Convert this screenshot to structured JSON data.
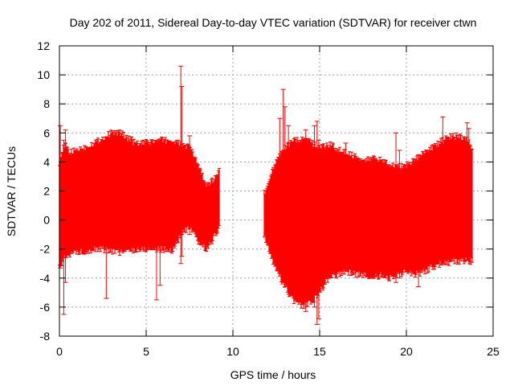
{
  "chart_data": {
    "type": "scatter",
    "title": "Day 202 of 2011, Sidereal Day-to-day VTEC variation (SDTVAR) for receiver ctwn",
    "xlabel": "GPS time / hours",
    "ylabel": "SDTVAR / TECUs",
    "xlim": [
      0,
      25
    ],
    "ylim": [
      -8,
      12
    ],
    "xticks": [
      0,
      5,
      10,
      15,
      20,
      25
    ],
    "yticks": [
      -8,
      -6,
      -4,
      -2,
      0,
      2,
      4,
      6,
      8,
      10,
      12
    ],
    "grid": true,
    "series_color": "#ff0000",
    "series": [
      {
        "name": "SDTVAR error bars",
        "segments": [
          {
            "x": [
              0.0,
              0.3,
              0.6,
              1.0,
              1.5,
              2.0,
              2.5,
              3.0,
              3.5,
              4.0,
              4.5,
              5.0,
              5.5,
              6.0,
              6.5,
              7.0,
              7.5,
              8.0,
              8.5,
              9.0,
              9.2
            ],
            "upper": [
              4.0,
              5.2,
              4.6,
              4.8,
              5.0,
              5.3,
              5.6,
              6.0,
              6.0,
              5.6,
              5.2,
              5.3,
              5.4,
              5.5,
              5.4,
              5.2,
              5.0,
              3.8,
              2.2,
              3.0,
              3.4
            ],
            "lower": [
              -3.3,
              -2.6,
              -2.3,
              -2.2,
              -2.1,
              -2.0,
              -2.0,
              -2.1,
              -2.2,
              -2.1,
              -2.0,
              -2.0,
              -2.0,
              -2.0,
              -2.1,
              -1.0,
              -0.5,
              -1.5,
              -2.0,
              -1.0,
              -0.5
            ]
          },
          {
            "x": [
              11.8,
              12.2,
              12.6,
              13.0,
              13.5,
              14.0,
              14.5,
              15.0,
              15.5,
              16.0,
              16.5,
              17.0,
              17.5,
              18.0,
              18.5,
              19.0,
              19.5,
              20.0,
              20.5,
              21.0,
              21.5,
              22.0,
              22.5,
              23.0,
              23.5,
              23.8
            ],
            "upper": [
              1.8,
              3.2,
              4.2,
              5.0,
              5.4,
              5.6,
              5.3,
              5.0,
              5.2,
              4.9,
              4.6,
              4.4,
              4.2,
              4.2,
              4.1,
              3.9,
              3.6,
              3.8,
              4.1,
              4.6,
              5.0,
              5.4,
              5.7,
              5.8,
              5.6,
              5.0
            ],
            "lower": [
              -1.0,
              -2.5,
              -3.6,
              -4.6,
              -5.5,
              -6.0,
              -5.6,
              -5.0,
              -4.0,
              -3.8,
              -3.5,
              -3.7,
              -3.8,
              -3.9,
              -3.8,
              -4.0,
              -3.7,
              -3.6,
              -3.7,
              -3.6,
              -3.2,
              -3.0,
              -2.9,
              -2.8,
              -2.8,
              -2.8
            ]
          }
        ],
        "spikes": [
          {
            "x": 0.05,
            "lo": -3.3,
            "hi": 6.5
          },
          {
            "x": 0.25,
            "lo": -6.5,
            "hi": 5.5
          },
          {
            "x": 0.35,
            "lo": -4.3,
            "hi": 6.2
          },
          {
            "x": 2.7,
            "lo": -5.4,
            "hi": 2.0
          },
          {
            "x": 5.6,
            "lo": -5.5,
            "hi": 4.0
          },
          {
            "x": 5.8,
            "lo": -4.5,
            "hi": 4.0
          },
          {
            "x": 7.0,
            "lo": -3.0,
            "hi": 10.6
          },
          {
            "x": 7.05,
            "lo": -2.5,
            "hi": 9.2
          },
          {
            "x": 7.5,
            "lo": -1.0,
            "hi": 5.8
          },
          {
            "x": 12.7,
            "lo": -2.0,
            "hi": 7.0
          },
          {
            "x": 12.9,
            "lo": -3.0,
            "hi": 9.0
          },
          {
            "x": 13.0,
            "lo": -4.0,
            "hi": 7.8
          },
          {
            "x": 13.2,
            "lo": -4.0,
            "hi": 6.5
          },
          {
            "x": 14.2,
            "lo": -6.3,
            "hi": 6.2
          },
          {
            "x": 14.7,
            "lo": -6.0,
            "hi": 6.5
          },
          {
            "x": 14.85,
            "lo": -7.2,
            "hi": 6.8
          },
          {
            "x": 14.95,
            "lo": -6.8,
            "hi": 5.5
          },
          {
            "x": 16.5,
            "lo": -3.5,
            "hi": 5.3
          },
          {
            "x": 19.4,
            "lo": -4.3,
            "hi": 6.0
          },
          {
            "x": 19.6,
            "lo": -4.0,
            "hi": 4.8
          },
          {
            "x": 20.7,
            "lo": -4.6,
            "hi": 4.5
          },
          {
            "x": 22.1,
            "lo": -3.0,
            "hi": 7.1
          },
          {
            "x": 23.5,
            "lo": -2.8,
            "hi": 6.7
          },
          {
            "x": 23.6,
            "lo": -2.8,
            "hi": 6.3
          }
        ]
      }
    ]
  }
}
